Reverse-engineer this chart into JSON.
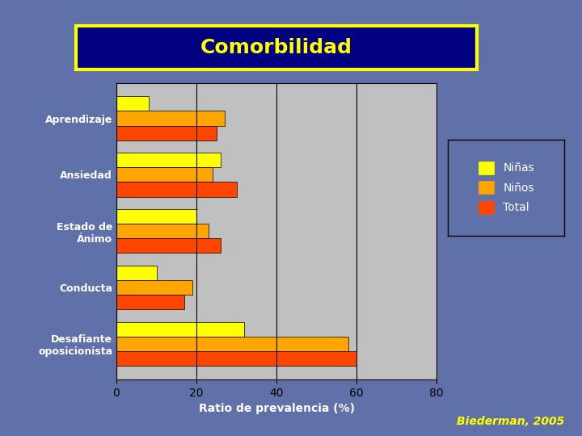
{
  "title": "Comorbilidad",
  "xlabel": "Ratio de prevalencia (%)",
  "categories": [
    "Aprendizaje",
    "Ansiedad",
    "Estado de\nÁnimo",
    "Conducta",
    "Desafiante\noposicionista"
  ],
  "ninas": [
    8,
    26,
    20,
    10,
    32
  ],
  "ninos": [
    27,
    24,
    23,
    19,
    58
  ],
  "total": [
    25,
    30,
    26,
    17,
    60
  ],
  "color_ninas": "#FFFF00",
  "color_ninos": "#FFA500",
  "color_total": "#FF4500",
  "bg_color": "#6070A8",
  "plot_bg": "#C0C0C0",
  "title_bg": "#000080",
  "title_color": "#FFFF00",
  "title_border": "#FFFF00",
  "text_color": "#FFFFFF",
  "legend_labels": [
    "Niñas",
    "Niños",
    "Total"
  ],
  "xlim": [
    0,
    80
  ],
  "xticks": [
    0,
    20,
    40,
    60,
    80
  ],
  "source_text": "Biederman, 2005",
  "source_color": "#FFFF00"
}
